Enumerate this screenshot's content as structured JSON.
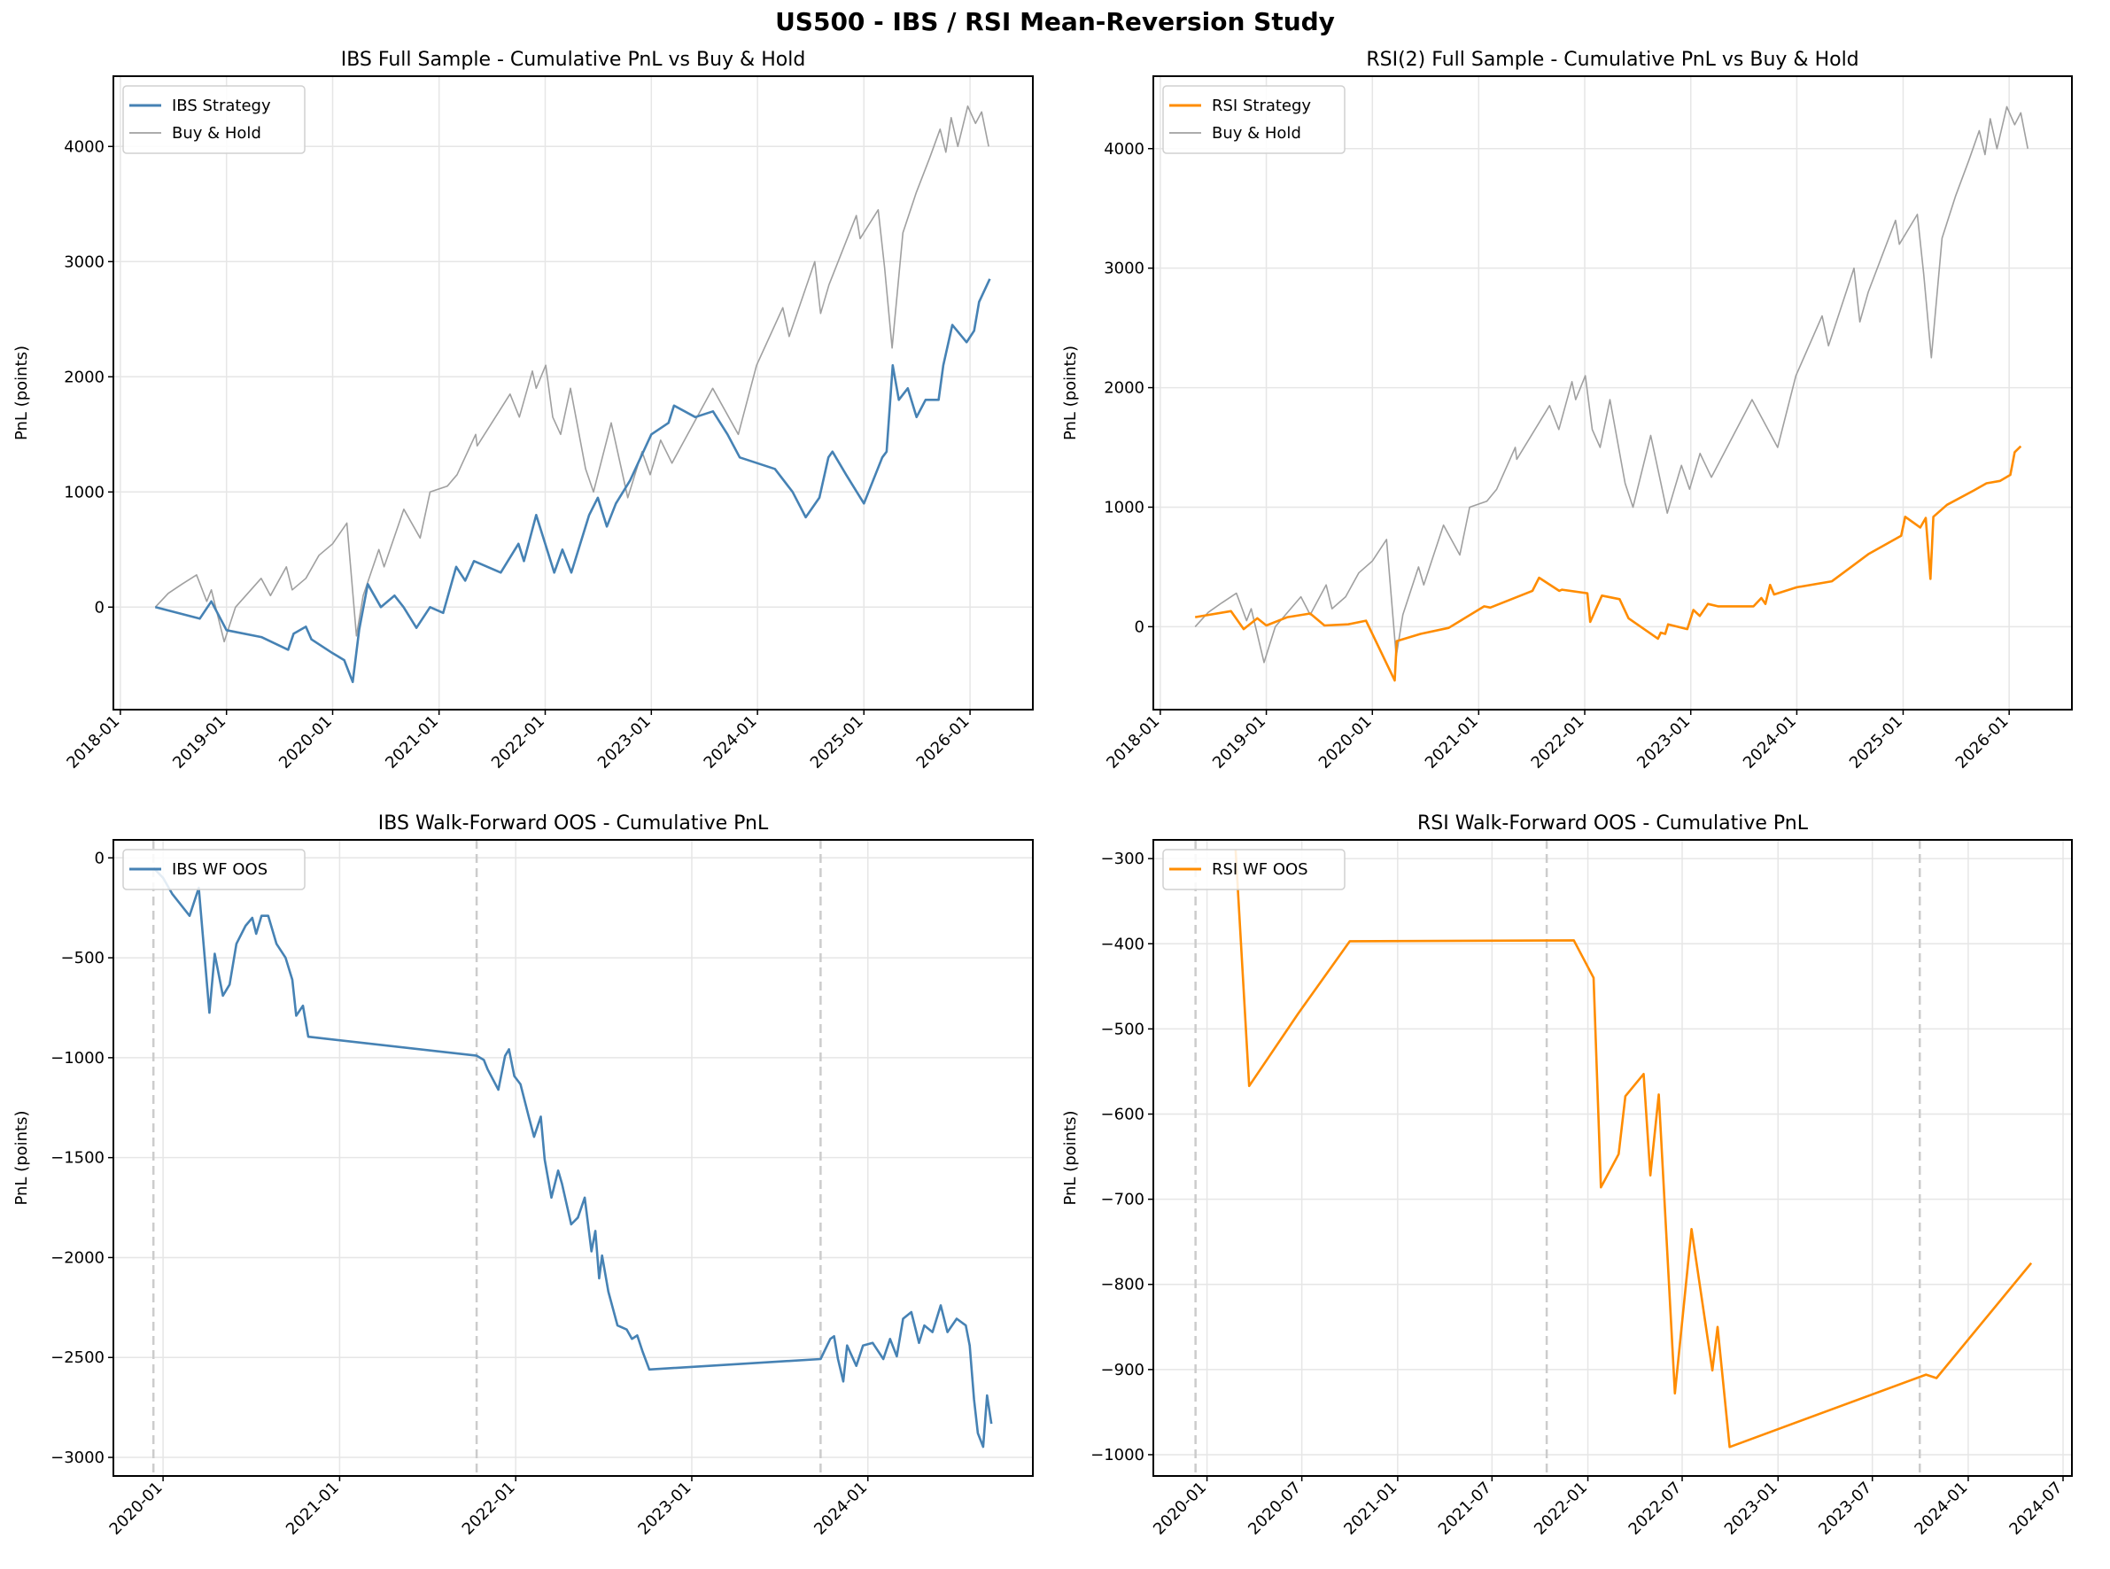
{
  "title": "US500 - IBS / RSI Mean-Reversion Study",
  "colors": {
    "ibs": "#4682b4",
    "rsi": "#ff8c00",
    "buy_hold": "#a0a0a0",
    "grid": "#e6e6e6",
    "wf_boundary": "#cccccc"
  },
  "chart_data": [
    {
      "type": "line",
      "title": "IBS Full Sample - Cumulative PnL vs Buy & Hold",
      "xlabel": "",
      "ylabel": "PnL (points)",
      "xlim": [
        "2017-12-08",
        "2026-08-05"
      ],
      "ylim": [
        -890,
        4610
      ],
      "grid": true,
      "legend": "upper-left",
      "xticks": [
        "2018-01",
        "2019-01",
        "2020-01",
        "2021-01",
        "2022-01",
        "2023-01",
        "2024-01",
        "2025-01",
        "2026-01"
      ],
      "yticks": [
        0,
        1000,
        2000,
        3000,
        4000
      ],
      "series": [
        {
          "name": "IBS Strategy",
          "color": "#4682b4",
          "x": [
            "2018-05-01",
            "2018-10-01",
            "2018-11-10",
            "2019-01-01",
            "2019-05-01",
            "2019-08-01",
            "2019-08-20",
            "2019-10-01",
            "2019-10-20",
            "2020-01-01",
            "2020-02-10",
            "2020-03-10",
            "2020-04-01",
            "2020-05-01",
            "2020-06-15",
            "2020-08-01",
            "2020-09-01",
            "2020-10-15",
            "2020-12-01",
            "2021-01-15",
            "2021-03-01",
            "2021-04-01",
            "2021-05-01",
            "2021-08-01",
            "2021-10-01",
            "2021-10-20",
            "2021-12-01",
            "2022-02-01",
            "2022-03-01",
            "2022-04-01",
            "2022-06-01",
            "2022-07-01",
            "2022-08-01",
            "2022-09-01",
            "2022-10-20",
            "2023-01-01",
            "2023-03-01",
            "2023-03-20",
            "2023-06-01",
            "2023-08-01",
            "2023-09-20",
            "2023-11-01",
            "2024-03-01",
            "2024-05-01",
            "2024-06-15",
            "2024-08-01",
            "2024-09-01",
            "2024-09-15",
            "2024-11-01",
            "2025-01-01",
            "2025-03-05",
            "2025-03-20",
            "2025-04-10",
            "2025-05-01",
            "2025-06-01",
            "2025-07-01",
            "2025-08-01",
            "2025-09-15",
            "2025-10-01",
            "2025-11-01",
            "2025-12-20",
            "2026-01-15",
            "2026-02-01",
            "2026-03-10"
          ],
          "y": [
            0,
            -100,
            50,
            -200,
            -260,
            -370,
            -230,
            -170,
            -280,
            -400,
            -460,
            -650,
            -200,
            200,
            0,
            100,
            0,
            -180,
            0,
            -50,
            350,
            230,
            400,
            300,
            550,
            400,
            800,
            300,
            500,
            300,
            800,
            950,
            700,
            900,
            1100,
            1500,
            1600,
            1750,
            1650,
            1700,
            1500,
            1300,
            1200,
            1000,
            780,
            950,
            1300,
            1350,
            1150,
            900,
            1300,
            1350,
            2100,
            1800,
            1900,
            1650,
            1800,
            1800,
            2100,
            2450,
            2300,
            2400,
            2650,
            2850
          ]
        },
        {
          "name": "Buy & Hold",
          "color": "#a0a0a0",
          "x": [
            "2018-05-01",
            "2018-06-15",
            "2018-08-01",
            "2018-09-20",
            "2018-10-25",
            "2018-11-10",
            "2018-12-24",
            "2019-02-01",
            "2019-04-30",
            "2019-06-01",
            "2019-07-26",
            "2019-08-15",
            "2019-10-01",
            "2019-11-15",
            "2020-01-01",
            "2020-02-19",
            "2020-03-23",
            "2020-04-15",
            "2020-06-08",
            "2020-06-26",
            "2020-09-02",
            "2020-10-28",
            "2020-12-01",
            "2021-01-29",
            "2021-03-04",
            "2021-05-07",
            "2021-05-12",
            "2021-09-02",
            "2021-10-04",
            "2021-11-18",
            "2021-12-01",
            "2022-01-03",
            "2022-01-27",
            "2022-02-23",
            "2022-03-29",
            "2022-05-20",
            "2022-06-16",
            "2022-08-16",
            "2022-10-12",
            "2022-11-30",
            "2022-12-28",
            "2023-02-02",
            "2023-03-13",
            "2023-07-31",
            "2023-10-27",
            "2023-12-29",
            "2024-03-28",
            "2024-04-19",
            "2024-07-16",
            "2024-08-05",
            "2024-09-03",
            "2024-12-06",
            "2024-12-19",
            "2025-02-19",
            "2025-03-13",
            "2025-04-08",
            "2025-05-15",
            "2025-06-30",
            "2025-08-15",
            "2025-09-20",
            "2025-10-10",
            "2025-10-28",
            "2025-11-20",
            "2025-12-24",
            "2026-01-20",
            "2026-02-10",
            "2026-03-06"
          ],
          "y": [
            0,
            120,
            200,
            280,
            50,
            150,
            -300,
            0,
            250,
            100,
            350,
            150,
            250,
            450,
            550,
            730,
            -250,
            100,
            500,
            350,
            850,
            600,
            1000,
            1050,
            1150,
            1500,
            1400,
            1850,
            1650,
            2050,
            1900,
            2100,
            1650,
            1500,
            1900,
            1200,
            1000,
            1600,
            950,
            1350,
            1150,
            1450,
            1250,
            1900,
            1500,
            2100,
            2600,
            2350,
            3000,
            2550,
            2800,
            3400,
            3200,
            3450,
            2950,
            2250,
            3250,
            3600,
            3900,
            4150,
            3950,
            4250,
            4000,
            4350,
            4200,
            4300,
            4000
          ]
        }
      ]
    },
    {
      "type": "line",
      "title": "RSI(2) Full Sample - Cumulative PnL vs Buy & Hold",
      "xlabel": "",
      "ylabel": "PnL (points)",
      "xlim": [
        "2017-12-08",
        "2026-08-05"
      ],
      "ylim": [
        -694,
        4606
      ],
      "grid": true,
      "legend": "upper-left",
      "xticks": [
        "2018-01",
        "2019-01",
        "2020-01",
        "2021-01",
        "2022-01",
        "2023-01",
        "2024-01",
        "2025-01",
        "2026-01"
      ],
      "yticks": [
        0,
        1000,
        2000,
        3000,
        4000
      ],
      "series": [
        {
          "name": "RSI Strategy",
          "color": "#ff8c00",
          "x": [
            "2018-05-01",
            "2018-09-01",
            "2018-10-15",
            "2018-12-01",
            "2019-01-01",
            "2019-03-15",
            "2019-06-01",
            "2019-07-20",
            "2019-10-10",
            "2019-12-10",
            "2020-03-18",
            "2020-03-25",
            "2020-06-15",
            "2020-09-20",
            "2021-01-20",
            "2021-02-10",
            "2021-07-05",
            "2021-07-28",
            "2021-10-05",
            "2021-10-15",
            "2022-01-10",
            "2022-01-20",
            "2022-03-01",
            "2022-05-01",
            "2022-06-01",
            "2022-09-10",
            "2022-09-20",
            "2022-10-05",
            "2022-10-15",
            "2022-12-20",
            "2023-01-10",
            "2023-02-01",
            "2023-03-01",
            "2023-04-05",
            "2023-08-05",
            "2023-09-01",
            "2023-09-15",
            "2023-10-01",
            "2023-10-15",
            "2024-01-01",
            "2024-05-01",
            "2024-09-05",
            "2024-12-25",
            "2025-01-08",
            "2025-03-01",
            "2025-03-20",
            "2025-04-05",
            "2025-04-15",
            "2025-06-01",
            "2025-09-01",
            "2025-10-15",
            "2025-12-01",
            "2026-01-05",
            "2026-01-20",
            "2026-02-10"
          ],
          "y": [
            80,
            130,
            -20,
            70,
            10,
            80,
            110,
            10,
            20,
            50,
            -450,
            -120,
            -60,
            -10,
            170,
            160,
            300,
            410,
            300,
            310,
            280,
            40,
            260,
            230,
            70,
            -100,
            -50,
            -60,
            20,
            -20,
            140,
            90,
            190,
            170,
            170,
            240,
            190,
            350,
            270,
            330,
            380,
            610,
            760,
            920,
            830,
            910,
            400,
            920,
            1020,
            1140,
            1200,
            1220,
            1270,
            1460,
            1510
          ]
        },
        {
          "name": "Buy & Hold",
          "color": "#a0a0a0",
          "x": [
            "2018-05-01",
            "2018-06-15",
            "2018-08-01",
            "2018-09-20",
            "2018-10-25",
            "2018-11-10",
            "2018-12-24",
            "2019-02-01",
            "2019-04-30",
            "2019-06-01",
            "2019-07-26",
            "2019-08-15",
            "2019-10-01",
            "2019-11-15",
            "2020-01-01",
            "2020-02-19",
            "2020-03-23",
            "2020-04-15",
            "2020-06-08",
            "2020-06-26",
            "2020-09-02",
            "2020-10-28",
            "2020-12-01",
            "2021-01-29",
            "2021-03-04",
            "2021-05-07",
            "2021-05-12",
            "2021-09-02",
            "2021-10-04",
            "2021-11-18",
            "2021-12-01",
            "2022-01-03",
            "2022-01-27",
            "2022-02-23",
            "2022-03-29",
            "2022-05-20",
            "2022-06-16",
            "2022-08-16",
            "2022-10-12",
            "2022-11-30",
            "2022-12-28",
            "2023-02-02",
            "2023-03-13",
            "2023-07-31",
            "2023-10-27",
            "2023-12-29",
            "2024-03-28",
            "2024-04-19",
            "2024-07-16",
            "2024-08-05",
            "2024-09-03",
            "2024-12-06",
            "2024-12-19",
            "2025-02-19",
            "2025-03-13",
            "2025-04-08",
            "2025-05-15",
            "2025-06-30",
            "2025-08-15",
            "2025-09-20",
            "2025-10-10",
            "2025-10-28",
            "2025-11-20",
            "2025-12-24",
            "2026-01-20",
            "2026-02-10",
            "2026-03-06"
          ],
          "y": [
            0,
            120,
            200,
            280,
            50,
            150,
            -300,
            0,
            250,
            100,
            350,
            150,
            250,
            450,
            550,
            730,
            -250,
            100,
            500,
            350,
            850,
            600,
            1000,
            1050,
            1150,
            1500,
            1400,
            1850,
            1650,
            2050,
            1900,
            2100,
            1650,
            1500,
            1900,
            1200,
            1000,
            1600,
            950,
            1350,
            1150,
            1450,
            1250,
            1900,
            1500,
            2100,
            2600,
            2350,
            3000,
            2550,
            2800,
            3400,
            3200,
            3450,
            2950,
            2250,
            3250,
            3600,
            3900,
            4150,
            3950,
            4250,
            4000,
            4350,
            4200,
            4300,
            4000
          ]
        }
      ]
    },
    {
      "type": "line",
      "title": "IBS Walk-Forward OOS - Cumulative PnL",
      "xlabel": "",
      "ylabel": "PnL (points)",
      "xlim": [
        "2019-09-20",
        "2024-12-08"
      ],
      "ylim": [
        -3093,
        90
      ],
      "grid": true,
      "legend": "upper-left",
      "xticks": [
        "2020-01",
        "2021-01",
        "2022-01",
        "2023-01",
        "2024-01"
      ],
      "yticks": [
        0,
        -500,
        -1000,
        -1500,
        -2000,
        -2500,
        -3000
      ],
      "vlines": [
        "2019-12-12",
        "2021-10-12",
        "2023-09-25"
      ],
      "series": [
        {
          "name": "IBS WF OOS",
          "color": "#4682b4",
          "x": [
            "2019-12-12",
            "2020-01-01",
            "2020-01-20",
            "2020-02-25",
            "2020-03-15",
            "2020-04-06",
            "2020-04-17",
            "2020-05-04",
            "2020-05-18",
            "2020-06-01",
            "2020-06-20",
            "2020-07-04",
            "2020-07-12",
            "2020-07-23",
            "2020-08-06",
            "2020-08-23",
            "2020-09-11",
            "2020-09-25",
            "2020-10-03",
            "2020-10-17",
            "2020-10-28",
            "2021-10-12",
            "2021-10-27",
            "2021-11-04",
            "2021-11-26",
            "2021-12-10",
            "2021-12-18",
            "2021-12-29",
            "2022-01-11",
            "2022-01-28",
            "2022-02-08",
            "2022-02-22",
            "2022-03-02",
            "2022-03-16",
            "2022-03-30",
            "2022-04-07",
            "2022-04-26",
            "2022-05-10",
            "2022-05-24",
            "2022-06-07",
            "2022-06-15",
            "2022-06-23",
            "2022-06-29",
            "2022-07-12",
            "2022-07-31",
            "2022-08-19",
            "2022-08-30",
            "2022-09-10",
            "2022-09-21",
            "2022-10-05",
            "2023-09-25",
            "2023-10-15",
            "2023-10-23",
            "2023-10-31",
            "2023-11-11",
            "2023-11-19",
            "2023-12-08",
            "2023-12-22",
            "2024-01-11",
            "2024-02-02",
            "2024-02-16",
            "2024-03-01",
            "2024-03-14",
            "2024-03-31",
            "2024-04-16",
            "2024-04-27",
            "2024-05-14",
            "2024-05-31",
            "2024-06-14",
            "2024-07-03",
            "2024-07-22",
            "2024-07-30",
            "2024-08-08",
            "2024-08-16",
            "2024-08-27",
            "2024-09-04",
            "2024-09-13"
          ],
          "y": [
            -50,
            -100,
            -180,
            -290,
            -150,
            -775,
            -480,
            -690,
            -634,
            -430,
            -340,
            -300,
            -380,
            -290,
            -290,
            -430,
            -500,
            -610,
            -790,
            -740,
            -895,
            -990,
            -1011,
            -1059,
            -1160,
            -991,
            -958,
            -1092,
            -1133,
            -1295,
            -1396,
            -1295,
            -1510,
            -1700,
            -1565,
            -1632,
            -1834,
            -1800,
            -1700,
            -1969,
            -1867,
            -2104,
            -1990,
            -2171,
            -2340,
            -2360,
            -2407,
            -2390,
            -2470,
            -2560,
            -2508,
            -2407,
            -2394,
            -2508,
            -2620,
            -2440,
            -2542,
            -2440,
            -2427,
            -2508,
            -2407,
            -2494,
            -2306,
            -2273,
            -2427,
            -2340,
            -2373,
            -2239,
            -2373,
            -2306,
            -2340,
            -2440,
            -2710,
            -2879,
            -2947,
            -2690,
            -2832
          ]
        }
      ]
    },
    {
      "type": "line",
      "title": "RSI Walk-Forward OOS - Cumulative PnL",
      "xlabel": "",
      "ylabel": "PnL (points)",
      "xlim": [
        "2019-09-20",
        "2024-07-18"
      ],
      "ylim": [
        -1025,
        -278
      ],
      "grid": true,
      "legend": "upper-left",
      "xticks": [
        "2020-01",
        "2020-07",
        "2021-01",
        "2021-07",
        "2022-01",
        "2022-07",
        "2023-01",
        "2023-07",
        "2024-01",
        "2024-07"
      ],
      "yticks": [
        -300,
        -400,
        -500,
        -600,
        -700,
        -800,
        -900,
        -1000
      ],
      "vlines": [
        "2019-12-10",
        "2021-10-14",
        "2023-09-30"
      ],
      "series": [
        {
          "name": "RSI WF OOS",
          "color": "#ff8c00",
          "x": [
            "2020-02-25",
            "2020-03-22",
            "2020-06-24",
            "2020-10-01",
            "2021-12-05",
            "2022-01-12",
            "2022-01-26",
            "2022-03-01",
            "2022-03-14",
            "2022-04-18",
            "2022-05-01",
            "2022-05-17",
            "2022-06-17",
            "2022-07-19",
            "2022-08-28",
            "2022-09-07",
            "2022-09-30",
            "2023-10-12",
            "2023-11-01",
            "2024-05-01"
          ],
          "y": [
            -290,
            -567,
            -482,
            -397,
            -396,
            -440,
            -686,
            -647,
            -579,
            -553,
            -672,
            -577,
            -928,
            -735,
            -901,
            -850,
            -991,
            -906,
            -910,
            -775
          ]
        }
      ]
    }
  ]
}
